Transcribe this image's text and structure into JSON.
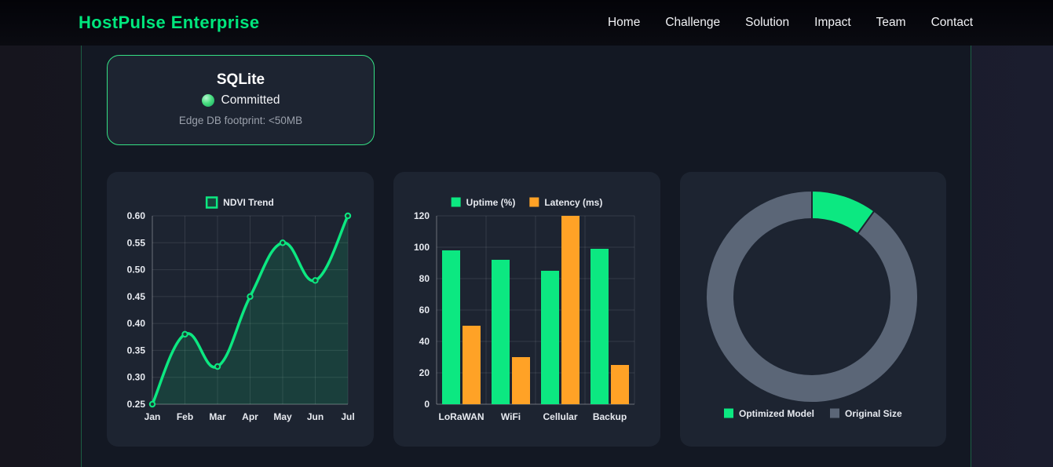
{
  "nav": {
    "brand": "HostPulse Enterprise",
    "items": [
      "Home",
      "Challenge",
      "Solution",
      "Impact",
      "Team",
      "Contact"
    ]
  },
  "status_card": {
    "title": "SQLite",
    "status": "Committed",
    "detail": "Edge DB footprint: <50MB"
  },
  "colors": {
    "green": "#0ce881",
    "orange": "#ffa226",
    "gray": "#5b6677",
    "text": "#e7eaf0",
    "grid": "rgba(255,255,255,0.10)",
    "axis": "rgba(255,255,255,0.28)",
    "card_bg": "#1d2431"
  },
  "chart_data": [
    {
      "type": "line",
      "legend": "NDVI Trend",
      "x": [
        "Jan",
        "Feb",
        "Mar",
        "Apr",
        "May",
        "Jun",
        "Jul"
      ],
      "series": [
        {
          "name": "NDVI Trend",
          "color": "green",
          "values": [
            0.25,
            0.38,
            0.32,
            0.45,
            0.55,
            0.48,
            0.6
          ]
        }
      ],
      "ylim": [
        0.25,
        0.6
      ],
      "ytick_step": 0.05,
      "grid": true,
      "legend_position": "top"
    },
    {
      "type": "bar",
      "categories": [
        "LoRaWAN",
        "WiFi",
        "Cellular",
        "Backup"
      ],
      "series": [
        {
          "name": "Uptime (%)",
          "color": "green",
          "values": [
            98,
            92,
            85,
            99
          ]
        },
        {
          "name": "Latency (ms)",
          "color": "orange",
          "values": [
            50,
            30,
            120,
            25
          ]
        }
      ],
      "ylim": [
        0,
        120
      ],
      "ytick_step": 20,
      "grid": true,
      "legend_position": "top"
    },
    {
      "type": "doughnut",
      "segments": [
        {
          "name": "Optimized Model",
          "color": "green",
          "value": 10
        },
        {
          "name": "Original Size",
          "color": "gray",
          "value": 90
        }
      ],
      "legend_position": "bottom"
    }
  ]
}
